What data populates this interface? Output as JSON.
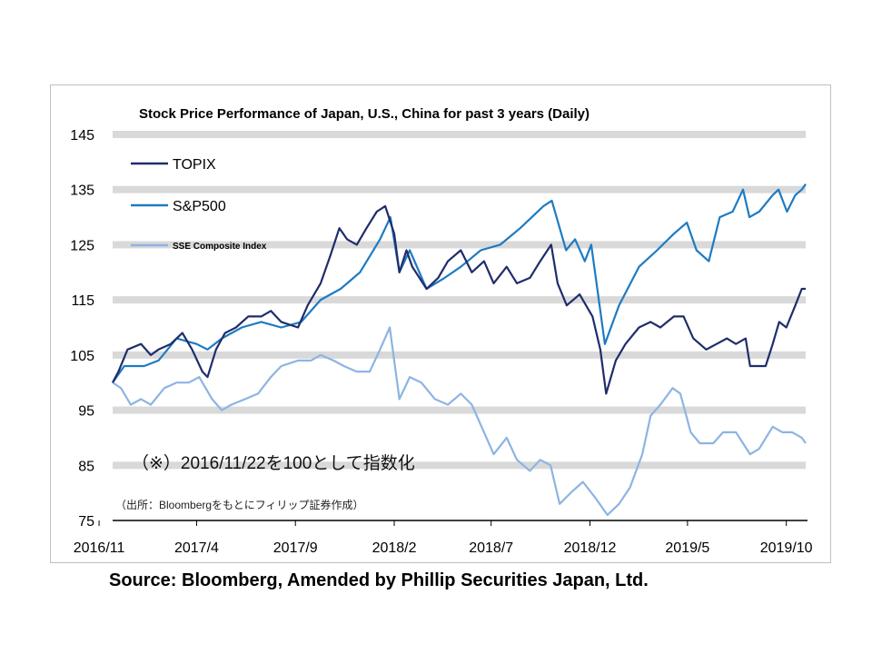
{
  "source_text": "Source: Bloomberg, Amended by Phillip Securities Japan, Ltd.",
  "note_index": "（※）2016/11/22を100として指数化",
  "note_source_jp": "（出所：Bloombergをもとにフィリップ証券作成）",
  "chart_data": {
    "type": "line",
    "title": "Stock Price Performance of Japan, U.S., China for past 3 years (Daily)",
    "xlabel": "",
    "ylabel": "",
    "ylim": [
      75,
      145
    ],
    "y_ticks": [
      "145",
      "135",
      "125",
      "115",
      "105",
      "95",
      "85",
      "75"
    ],
    "x_tick_labels": [
      "2016/11",
      "2017/4",
      "2017/9",
      "2018/2",
      "2018/7",
      "2018/12",
      "2019/5",
      "2019/10"
    ],
    "x_range": [
      "2016/11/22",
      "2019/10/31"
    ],
    "grid": "horizontal bands",
    "legend_position": "top-left",
    "series": [
      {
        "name": "TOPIX",
        "color": "#1f2d6b",
        "points": [
          [
            "2016/11/22",
            100
          ],
          [
            "2016/12/01",
            102
          ],
          [
            "2016/12/15",
            106
          ],
          [
            "2017/01/05",
            107
          ],
          [
            "2017/01/20",
            105
          ],
          [
            "2017/02/01",
            106
          ],
          [
            "2017/02/20",
            107
          ],
          [
            "2017/03/10",
            109
          ],
          [
            "2017/03/25",
            106
          ],
          [
            "2017/04/10",
            102
          ],
          [
            "2017/04/18",
            101
          ],
          [
            "2017/05/01",
            106
          ],
          [
            "2017/05/15",
            109
          ],
          [
            "2017/06/01",
            110
          ],
          [
            "2017/06/20",
            112
          ],
          [
            "2017/07/10",
            112
          ],
          [
            "2017/07/25",
            113
          ],
          [
            "2017/08/10",
            111
          ],
          [
            "2017/09/05",
            110
          ],
          [
            "2017/09/20",
            114
          ],
          [
            "2017/10/10",
            118
          ],
          [
            "2017/10/25",
            123
          ],
          [
            "2017/11/08",
            128
          ],
          [
            "2017/11/20",
            126
          ],
          [
            "2017/12/05",
            125
          ],
          [
            "2017/12/20",
            128
          ],
          [
            "2018/01/05",
            131
          ],
          [
            "2018/01/18",
            132
          ],
          [
            "2018/02/01",
            127
          ],
          [
            "2018/02/09",
            120
          ],
          [
            "2018/02/20",
            124
          ],
          [
            "2018/03/01",
            121
          ],
          [
            "2018/03/23",
            117
          ],
          [
            "2018/04/10",
            119
          ],
          [
            "2018/04/25",
            122
          ],
          [
            "2018/05/15",
            124
          ],
          [
            "2018/06/01",
            120
          ],
          [
            "2018/06/20",
            122
          ],
          [
            "2018/07/05",
            118
          ],
          [
            "2018/07/25",
            121
          ],
          [
            "2018/08/10",
            118
          ],
          [
            "2018/08/30",
            119
          ],
          [
            "2018/09/15",
            122
          ],
          [
            "2018/10/02",
            125
          ],
          [
            "2018/10/12",
            118
          ],
          [
            "2018/10/26",
            114
          ],
          [
            "2018/11/15",
            116
          ],
          [
            "2018/12/05",
            112
          ],
          [
            "2018/12/17",
            106
          ],
          [
            "2018/12/26",
            98
          ],
          [
            "2019/01/10",
            104
          ],
          [
            "2019/01/25",
            107
          ],
          [
            "2019/02/15",
            110
          ],
          [
            "2019/03/05",
            111
          ],
          [
            "2019/03/20",
            110
          ],
          [
            "2019/04/10",
            112
          ],
          [
            "2019/04/25",
            112
          ],
          [
            "2019/05/10",
            108
          ],
          [
            "2019/05/30",
            106
          ],
          [
            "2019/06/15",
            107
          ],
          [
            "2019/07/01",
            108
          ],
          [
            "2019/07/15",
            107
          ],
          [
            "2019/07/30",
            108
          ],
          [
            "2019/08/06",
            103
          ],
          [
            "2019/08/20",
            103
          ],
          [
            "2019/08/30",
            103
          ],
          [
            "2019/09/10",
            107
          ],
          [
            "2019/09/20",
            111
          ],
          [
            "2019/10/01",
            110
          ],
          [
            "2019/10/15",
            114
          ],
          [
            "2019/10/25",
            117
          ],
          [
            "2019/10/31",
            117
          ]
        ]
      },
      {
        "name": "S&P500",
        "color": "#1e7bc2",
        "points": [
          [
            "2016/11/22",
            100
          ],
          [
            "2016/12/10",
            103
          ],
          [
            "2017/01/10",
            103
          ],
          [
            "2017/02/01",
            104
          ],
          [
            "2017/03/01",
            108
          ],
          [
            "2017/04/01",
            107
          ],
          [
            "2017/04/18",
            106
          ],
          [
            "2017/05/10",
            108
          ],
          [
            "2017/06/10",
            110
          ],
          [
            "2017/07/10",
            111
          ],
          [
            "2017/08/10",
            110
          ],
          [
            "2017/09/10",
            111
          ],
          [
            "2017/10/10",
            115
          ],
          [
            "2017/11/10",
            117
          ],
          [
            "2017/12/10",
            120
          ],
          [
            "2018/01/10",
            126
          ],
          [
            "2018/01/26",
            130
          ],
          [
            "2018/02/09",
            120
          ],
          [
            "2018/02/25",
            124
          ],
          [
            "2018/03/23",
            117
          ],
          [
            "2018/04/20",
            119
          ],
          [
            "2018/05/15",
            121
          ],
          [
            "2018/06/15",
            124
          ],
          [
            "2018/07/15",
            125
          ],
          [
            "2018/08/15",
            128
          ],
          [
            "2018/09/20",
            132
          ],
          [
            "2018/10/03",
            133
          ],
          [
            "2018/10/25",
            124
          ],
          [
            "2018/11/08",
            126
          ],
          [
            "2018/11/23",
            122
          ],
          [
            "2018/12/03",
            125
          ],
          [
            "2018/12/24",
            107
          ],
          [
            "2019/01/15",
            114
          ],
          [
            "2019/02/15",
            121
          ],
          [
            "2019/03/15",
            124
          ],
          [
            "2019/04/10",
            127
          ],
          [
            "2019/04/30",
            129
          ],
          [
            "2019/05/15",
            124
          ],
          [
            "2019/06/03",
            122
          ],
          [
            "2019/06/20",
            130
          ],
          [
            "2019/07/10",
            131
          ],
          [
            "2019/07/26",
            135
          ],
          [
            "2019/08/05",
            130
          ],
          [
            "2019/08/20",
            131
          ],
          [
            "2019/09/10",
            134
          ],
          [
            "2019/09/19",
            135
          ],
          [
            "2019/10/02",
            131
          ],
          [
            "2019/10/15",
            134
          ],
          [
            "2019/10/25",
            135
          ],
          [
            "2019/10/31",
            136
          ]
        ]
      },
      {
        "name": "SSE Composite Index",
        "color": "#8db4e2",
        "points": [
          [
            "2016/11/22",
            100
          ],
          [
            "2016/12/05",
            99
          ],
          [
            "2016/12/20",
            96
          ],
          [
            "2017/01/05",
            97
          ],
          [
            "2017/01/20",
            96
          ],
          [
            "2017/02/10",
            99
          ],
          [
            "2017/03/01",
            100
          ],
          [
            "2017/03/20",
            100
          ],
          [
            "2017/04/05",
            101
          ],
          [
            "2017/04/25",
            97
          ],
          [
            "2017/05/10",
            95
          ],
          [
            "2017/05/25",
            96
          ],
          [
            "2017/06/15",
            97
          ],
          [
            "2017/07/05",
            98
          ],
          [
            "2017/07/25",
            101
          ],
          [
            "2017/08/10",
            103
          ],
          [
            "2017/09/05",
            104
          ],
          [
            "2017/09/25",
            104
          ],
          [
            "2017/10/10",
            105
          ],
          [
            "2017/10/30",
            104
          ],
          [
            "2017/11/15",
            103
          ],
          [
            "2017/12/05",
            102
          ],
          [
            "2017/12/25",
            102
          ],
          [
            "2018/01/10",
            106
          ],
          [
            "2018/01/25",
            110
          ],
          [
            "2018/02/09",
            97
          ],
          [
            "2018/02/25",
            101
          ],
          [
            "2018/03/15",
            100
          ],
          [
            "2018/04/05",
            97
          ],
          [
            "2018/04/25",
            96
          ],
          [
            "2018/05/15",
            98
          ],
          [
            "2018/06/01",
            96
          ],
          [
            "2018/06/20",
            91
          ],
          [
            "2018/07/05",
            87
          ],
          [
            "2018/07/25",
            90
          ],
          [
            "2018/08/10",
            86
          ],
          [
            "2018/08/30",
            84
          ],
          [
            "2018/09/15",
            86
          ],
          [
            "2018/10/01",
            85
          ],
          [
            "2018/10/15",
            78
          ],
          [
            "2018/11/01",
            80
          ],
          [
            "2018/11/20",
            82
          ],
          [
            "2018/12/10",
            79
          ],
          [
            "2018/12/28",
            76
          ],
          [
            "2019/01/15",
            78
          ],
          [
            "2019/02/01",
            81
          ],
          [
            "2019/02/20",
            87
          ],
          [
            "2019/03/05",
            94
          ],
          [
            "2019/03/20",
            96
          ],
          [
            "2019/04/08",
            99
          ],
          [
            "2019/04/20",
            98
          ],
          [
            "2019/05/06",
            91
          ],
          [
            "2019/05/20",
            89
          ],
          [
            "2019/06/10",
            89
          ],
          [
            "2019/06/25",
            91
          ],
          [
            "2019/07/15",
            91
          ],
          [
            "2019/08/06",
            87
          ],
          [
            "2019/08/20",
            88
          ],
          [
            "2019/09/10",
            92
          ],
          [
            "2019/09/25",
            91
          ],
          [
            "2019/10/10",
            91
          ],
          [
            "2019/10/25",
            90
          ],
          [
            "2019/10/31",
            89
          ]
        ]
      }
    ]
  }
}
